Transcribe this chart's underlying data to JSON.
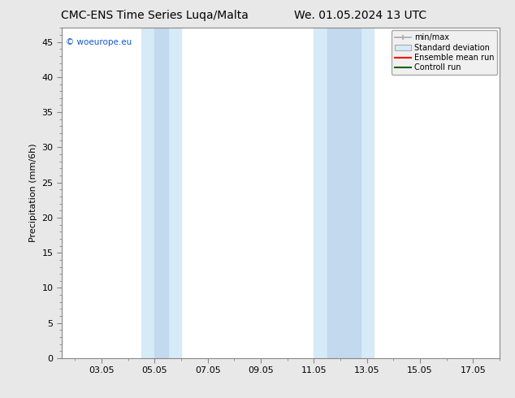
{
  "title_left": "CMC-ENS Time Series Luqa/Malta",
  "title_right": "We. 01.05.2024 13 UTC",
  "ylabel": "Precipitation (mm/6h)",
  "watermark": "© woeurope.eu",
  "xlim": [
    1.5,
    18.0
  ],
  "ylim": [
    0,
    47
  ],
  "yticks": [
    0,
    5,
    10,
    15,
    20,
    25,
    30,
    35,
    40,
    45
  ],
  "xtick_labels": [
    "03.05",
    "05.05",
    "07.05",
    "09.05",
    "11.05",
    "13.05",
    "15.05",
    "17.05"
  ],
  "xtick_positions": [
    3,
    5,
    7,
    9,
    11,
    13,
    15,
    17
  ],
  "shaded_regions": [
    {
      "xmin": 4.5,
      "xmax": 5.5,
      "color": "#ddeeff"
    },
    {
      "xmin": 5.5,
      "xmax": 6.0,
      "color": "#c8dcf0"
    },
    {
      "xmin": 11.0,
      "xmax": 12.0,
      "color": "#ddeeff"
    },
    {
      "xmin": 12.0,
      "xmax": 13.25,
      "color": "#c8dcf0"
    }
  ],
  "legend_labels": [
    "min/max",
    "Standard deviation",
    "Ensemble mean run",
    "Controll run"
  ],
  "bg_color": "#e8e8e8",
  "plot_bg_color": "#ffffff",
  "border_color": "#888888",
  "title_fontsize": 10,
  "label_fontsize": 8,
  "tick_fontsize": 8,
  "watermark_color": "#1155cc"
}
